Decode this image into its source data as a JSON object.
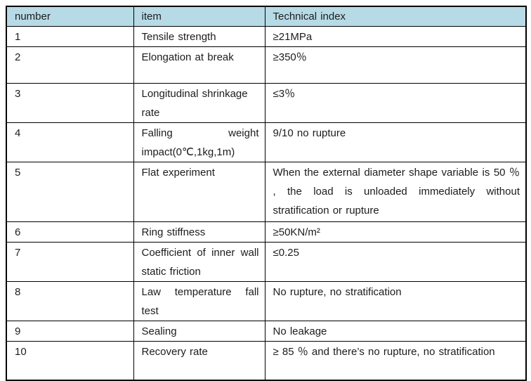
{
  "colors": {
    "header_background": "#b7dbe6",
    "border": "#000000",
    "text": "#1c1c1c",
    "page_background": "#ffffff"
  },
  "table": {
    "headers": [
      "number",
      "item",
      "Technical index"
    ],
    "rows": [
      {
        "number": "1",
        "item": "Tensile strength",
        "index": "≥21MPa"
      },
      {
        "number": "2",
        "item": "Elongation at break",
        "index": "≥350％"
      },
      {
        "number": "3",
        "item": "Longitudinal shrinkage rate",
        "index": "≤3％"
      },
      {
        "number": "4",
        "item": "Falling weight impact(0℃,1kg,1m)",
        "index": "9/10 no rupture"
      },
      {
        "number": "5",
        "item": "Flat experiment",
        "index": "When the external diameter shape variable is 50 ％ , the load is unloaded immediately without stratification or rupture"
      },
      {
        "number": "6",
        "item": "Ring stiffness",
        "index": "≥50KN/m²"
      },
      {
        "number": "7",
        "item": "Coefficient of inner wall static friction",
        "index": "≤0.25"
      },
      {
        "number": "8",
        "item": "Law temperature fall test",
        "index": "No rupture, no stratification"
      },
      {
        "number": "9",
        "item": "Sealing",
        "index": "No leakage"
      },
      {
        "number": "10",
        "item": "Recovery rate",
        "index": "≥ 85 ％ and there’s no rupture, no stratification"
      }
    ]
  }
}
